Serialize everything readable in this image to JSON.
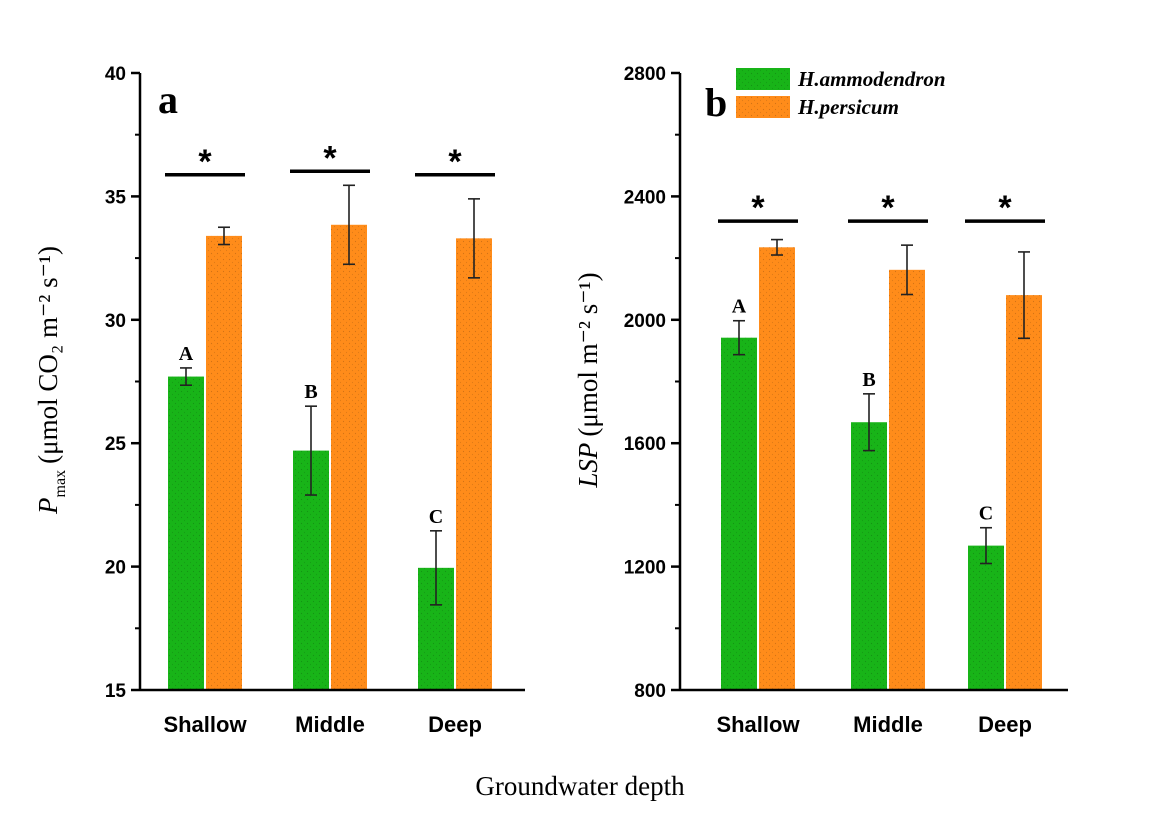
{
  "figure": {
    "xlabel": "Groundwater depth",
    "colors": {
      "H.ammodendron": "#18b418",
      "H.persicum": "#ff8c1a",
      "axis": "#000000"
    }
  },
  "chart_data": [
    {
      "type": "bar",
      "panel_label": "a",
      "ylabel": {
        "main": "P",
        "sub": "max",
        "unit": "(μmol CO₂ m⁻² s⁻¹)"
      },
      "ylim": [
        15,
        40
      ],
      "yticks": [
        15,
        20,
        25,
        30,
        35,
        40
      ],
      "categories": [
        "Shallow",
        "Middle",
        "Deep"
      ],
      "series": [
        {
          "name": "H.ammodendron",
          "values": [
            27.7,
            24.7,
            19.95
          ],
          "errors": [
            0.35,
            1.8,
            1.5
          ],
          "letters": [
            "A",
            "B",
            "C"
          ]
        },
        {
          "name": "H.persicum",
          "values": [
            33.4,
            33.85,
            33.3
          ],
          "errors": [
            0.35,
            1.6,
            1.6
          ]
        }
      ],
      "significance": [
        "*",
        "*",
        "*"
      ]
    },
    {
      "type": "bar",
      "panel_label": "b",
      "ylabel": {
        "main": "LSP",
        "unit": "(μmol m⁻² s⁻¹)"
      },
      "ylim": [
        800,
        2800
      ],
      "yticks": [
        800,
        1200,
        1600,
        2000,
        2400,
        2800
      ],
      "categories": [
        "Shallow",
        "Middle",
        "Deep"
      ],
      "series": [
        {
          "name": "H.ammodendron",
          "values": [
            1942,
            1668,
            1268
          ],
          "errors": [
            55,
            92,
            58
          ],
          "letters": [
            "A",
            "B",
            "C"
          ]
        },
        {
          "name": "H.persicum",
          "values": [
            2235,
            2162,
            2080
          ],
          "errors": [
            25,
            80,
            140
          ]
        }
      ],
      "significance": [
        "*",
        "*",
        "*"
      ],
      "legend": {
        "entries": [
          "H.ammodendron",
          "H.persicum"
        ],
        "position": "top-center"
      }
    }
  ]
}
